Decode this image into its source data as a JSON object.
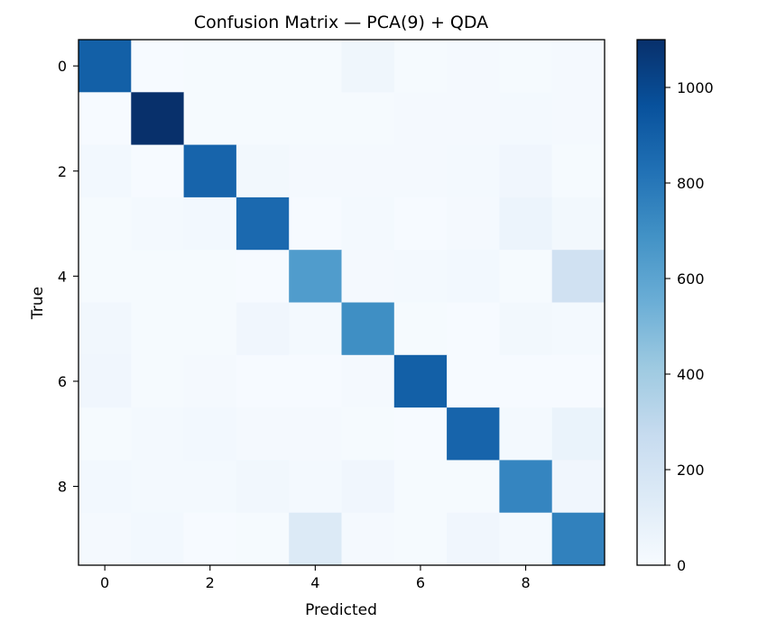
{
  "chart_data": {
    "type": "heatmap",
    "title": "Confusion Matrix — PCA(9) + QDA",
    "xlabel": "Predicted",
    "ylabel": "True",
    "x_tick_labels": [
      "0",
      "2",
      "4",
      "6",
      "8"
    ],
    "y_tick_labels": [
      "0",
      "2",
      "4",
      "6",
      "8"
    ],
    "x_tick_indices": [
      0,
      2,
      4,
      6,
      8
    ],
    "y_tick_indices": [
      0,
      2,
      4,
      6,
      8
    ],
    "classes": [
      0,
      1,
      2,
      3,
      4,
      5,
      6,
      7,
      8,
      9
    ],
    "values": [
      [
        900,
        5,
        10,
        10,
        10,
        45,
        10,
        15,
        10,
        15
      ],
      [
        5,
        1100,
        10,
        10,
        10,
        10,
        15,
        15,
        20,
        15
      ],
      [
        25,
        5,
        880,
        30,
        15,
        15,
        15,
        20,
        40,
        10
      ],
      [
        10,
        20,
        25,
        860,
        5,
        20,
        5,
        15,
        60,
        30
      ],
      [
        10,
        10,
        10,
        5,
        640,
        15,
        20,
        25,
        10,
        220
      ],
      [
        35,
        10,
        10,
        40,
        20,
        700,
        10,
        5,
        30,
        20
      ],
      [
        40,
        10,
        15,
        5,
        5,
        15,
        900,
        5,
        5,
        5
      ],
      [
        10,
        20,
        25,
        15,
        15,
        10,
        5,
        880,
        20,
        70
      ],
      [
        25,
        20,
        20,
        35,
        20,
        40,
        10,
        10,
        740,
        40
      ],
      [
        15,
        25,
        5,
        10,
        150,
        15,
        10,
        40,
        20,
        760
      ]
    ],
    "colorbar": {
      "min": 0,
      "max": 1100,
      "ticks": [
        0,
        200,
        400,
        600,
        800,
        1000
      ],
      "colormap": "Blues"
    },
    "grid": false
  }
}
